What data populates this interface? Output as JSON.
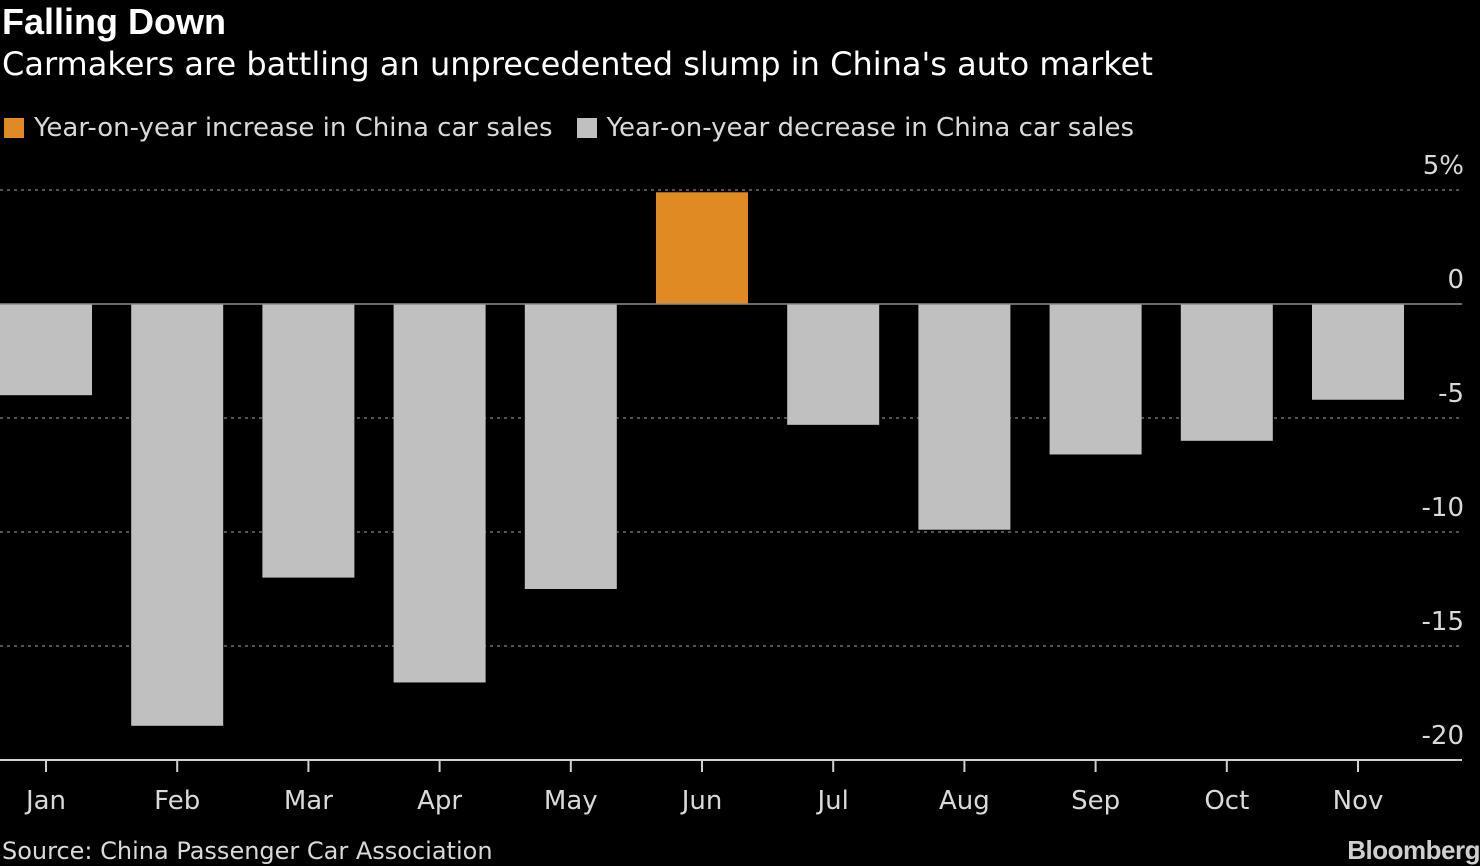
{
  "header": {
    "title": "Falling Down",
    "subtitle": "Carmakers are battling an unprecedented slump in China's auto market"
  },
  "legend": {
    "increase_label": "Year-on-year increase in China car sales",
    "decrease_label": "Year-on-year decrease in China car sales"
  },
  "colors": {
    "background": "#000000",
    "increase": "#e08a24",
    "decrease": "#c0c0c0",
    "grid": "#6e6e6e",
    "axis_text": "#d9d9d9"
  },
  "footer": {
    "source": "Source: China Passenger Car Association",
    "brand": "Bloomberg"
  },
  "chart_data": {
    "type": "bar",
    "categories": [
      "Jan",
      "Feb",
      "Mar",
      "Apr",
      "May",
      "Jun",
      "Jul",
      "Aug",
      "Sep",
      "Oct",
      "Nov"
    ],
    "values": [
      -4.0,
      -18.5,
      -12.0,
      -16.6,
      -12.5,
      4.9,
      -5.3,
      -9.9,
      -6.6,
      -6.0,
      -4.2
    ],
    "title": "Falling Down",
    "subtitle": "Carmakers are battling an unprecedented slump in China's auto market",
    "xlabel": "",
    "ylabel": "",
    "ylim": [
      -20,
      5
    ],
    "yticks": [
      5,
      0,
      -5,
      -10,
      -15,
      -20
    ],
    "ytick_labels": [
      "5%",
      "0",
      "-5",
      "-10",
      "-15",
      "-20"
    ],
    "grid": true,
    "legend_position": "top-left",
    "y_axis_position": "right"
  }
}
